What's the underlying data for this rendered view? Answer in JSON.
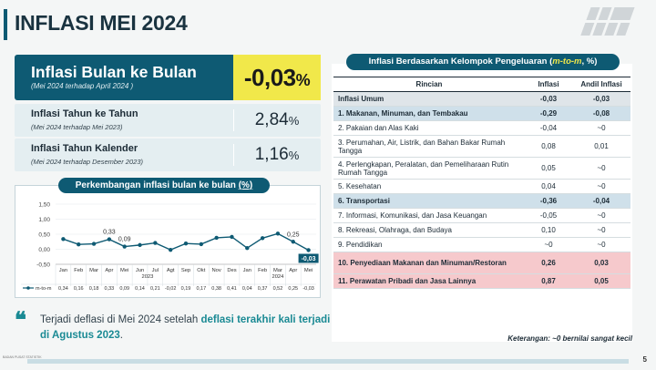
{
  "page": {
    "title": "INFLASI MEI 2024",
    "page_number": "5",
    "footer_org": "BADAN PUSAT STATISTIK"
  },
  "main_card": {
    "title": "Inflasi Bulan ke Bulan",
    "subtitle": "(Mei 2024 terhadap April 2024 )",
    "value": "-0,03",
    "unit": "%"
  },
  "yoy_card": {
    "title": "Inflasi Tahun ke Tahun",
    "subtitle": "(Mei 2024 terhadap Mei 2023)",
    "value": "2,84",
    "unit": "%"
  },
  "ytd_card": {
    "title": "Inflasi Tahun Kalender",
    "subtitle": "(Mei 2024 terhadap Desember 2023)",
    "value": "1,16",
    "unit": "%"
  },
  "chart_header": {
    "prefix": "Perkembangan inflasi bulan ke bulan ",
    "unit": "(%)"
  },
  "chart_data": {
    "type": "line",
    "title": "Perkembangan inflasi bulan ke bulan (%)",
    "categories": [
      "Jan",
      "Feb",
      "Mar",
      "Apr",
      "Mei",
      "Jun",
      "Jul",
      "Agt",
      "Sep",
      "Okt",
      "Nov",
      "Des",
      "Jan",
      "Feb",
      "Mar",
      "Apr",
      "Mei"
    ],
    "year_labels": [
      "2023",
      "2024"
    ],
    "series": [
      {
        "name": "m-to-m",
        "values": [
          0.34,
          0.16,
          0.18,
          0.33,
          0.09,
          0.14,
          0.21,
          -0.02,
          0.19,
          0.17,
          0.38,
          0.41,
          0.04,
          0.37,
          0.52,
          0.25,
          -0.03
        ]
      }
    ],
    "table_values": [
      "0,34",
      "0,16",
      "0,18",
      "0,33",
      "0,09",
      "0,14",
      "0,21",
      "-0,02",
      "0,19",
      "0,17",
      "0,38",
      "0,41",
      "0,04",
      "0,37",
      "0,52",
      "0,25",
      "-0,03"
    ],
    "point_labels": [
      {
        "index": 3,
        "text": "0,33"
      },
      {
        "index": 4,
        "text": "0,09"
      },
      {
        "index": 15,
        "text": "0,25"
      },
      {
        "index": 16,
        "text": "-0,03"
      }
    ],
    "yticks": [
      "1,50",
      "1,00",
      "0,50",
      "0,00",
      "-0,50"
    ],
    "ytick_values": [
      1.5,
      1.0,
      0.5,
      0.0,
      -0.5
    ],
    "ylim": [
      -0.5,
      1.5
    ],
    "line_color": "#0e5a73",
    "highlight_color": "#0e5a73"
  },
  "quote": {
    "mark": "❝",
    "part1": "Terjadi deflasi di Mei 2024 setelah ",
    "highlight": "deflasi terakhir kali terjadi di Agustus 2023",
    "part2": "."
  },
  "table": {
    "title_prefix": "Inflasi Berdasarkan Kelompok Pengeluaran (",
    "title_hl": "m-to-m",
    "title_suffix": ", %)",
    "headers": [
      "Rincian",
      "Inflasi",
      "Andil Inflasi"
    ],
    "rows": [
      {
        "name": "Inflasi Umum",
        "inflasi": "-0,03",
        "andil": "-0,03",
        "style": "umum"
      },
      {
        "name": "1. Makanan, Minuman, dan Tembakau",
        "inflasi": "-0,29",
        "andil": "-0,08",
        "style": "hl-blue"
      },
      {
        "name": "2. Pakaian dan Alas Kaki",
        "inflasi": "-0,04",
        "andil": "~0",
        "style": ""
      },
      {
        "name": "3. Perumahan, Air, Listrik, dan Bahan Bakar Rumah Tangga",
        "inflasi": "0,08",
        "andil": "0,01",
        "style": "tall"
      },
      {
        "name": "4. Perlengkapan, Peralatan, dan Pemeliharaan Rutin Rumah Tangga",
        "inflasi": "0,05",
        "andil": "~0",
        "style": "tall"
      },
      {
        "name": "5. Kesehatan",
        "inflasi": "0,04",
        "andil": "~0",
        "style": ""
      },
      {
        "name": "6. Transportasi",
        "inflasi": "-0,36",
        "andil": "-0,04",
        "style": "hl-blue"
      },
      {
        "name": "7. Informasi, Komunikasi, dan Jasa Keuangan",
        "inflasi": "-0,05",
        "andil": "~0",
        "style": ""
      },
      {
        "name": "8. Rekreasi, Olahraga, dan Budaya",
        "inflasi": "0,10",
        "andil": "~0",
        "style": ""
      },
      {
        "name": "9. Pendidikan",
        "inflasi": "~0",
        "andil": "~0",
        "style": ""
      },
      {
        "name": "10. Penyediaan Makanan dan Minuman/Restoran",
        "inflasi": "0,26",
        "andil": "0,03",
        "style": "hl-red tall"
      },
      {
        "name": "11. Perawatan Pribadi dan Jasa Lainnya",
        "inflasi": "0,87",
        "andil": "0,05",
        "style": "hl-red"
      }
    ],
    "note": "Keterangan: ~0 bernilai sangat kecil"
  }
}
